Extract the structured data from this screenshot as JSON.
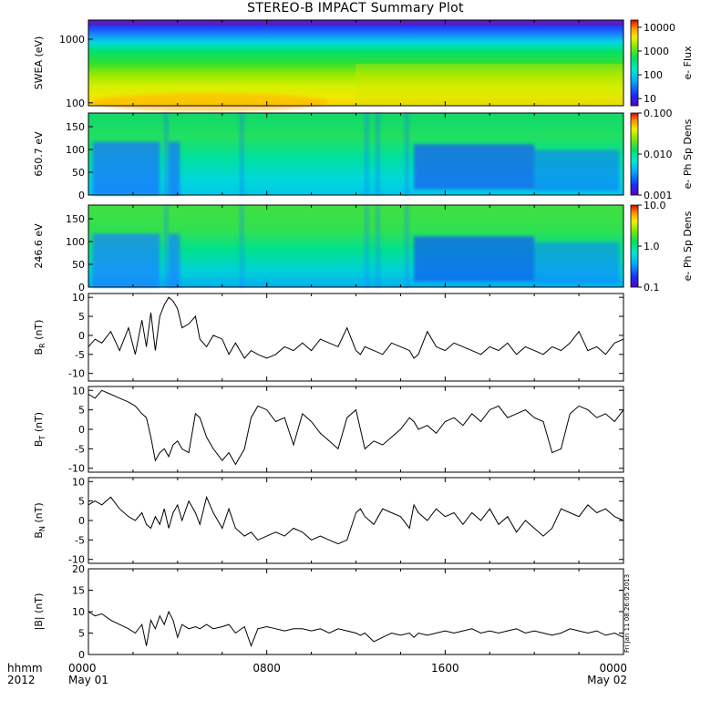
{
  "title": "STEREO-B IMPACT Summary Plot",
  "timestamp": "Fri Jan 11 08:26:05 2013",
  "x_axis": {
    "left_labels": [
      "hhmm",
      "2012"
    ],
    "ticks": [
      {
        "t": 0,
        "lines": [
          "0000",
          "May 01"
        ]
      },
      {
        "t": 8,
        "lines": [
          "0800",
          ""
        ]
      },
      {
        "t": 16,
        "lines": [
          "1600",
          ""
        ]
      },
      {
        "t": 24,
        "lines": [
          "0000",
          "May 02"
        ]
      }
    ]
  },
  "chart_data": [
    {
      "type": "heatmap",
      "panel": "swea",
      "ylabel": "SWEA (eV)",
      "y_scale": "log",
      "ylim": [
        90,
        2000
      ],
      "yticks": [
        "100",
        "1000"
      ],
      "colorbar": {
        "label": "e- Flux",
        "scale": "log",
        "range": [
          5,
          20000
        ],
        "ticks": [
          "10",
          "100",
          "1000",
          "10000"
        ]
      },
      "description_rows": [
        {
          "energy_ev": 1800,
          "value": 8
        },
        {
          "energy_ev": 1200,
          "value": 60
        },
        {
          "energy_ev": 700,
          "value": 600
        },
        {
          "energy_ev": 400,
          "value": 1500
        },
        {
          "energy_ev": 200,
          "value": 5000
        },
        {
          "energy_ev": 110,
          "value": 9000
        }
      ]
    },
    {
      "type": "heatmap",
      "panel": "pad650",
      "ylabel": "650.7 eV",
      "ylim": [
        0,
        180
      ],
      "yticks": [
        "0",
        "50",
        "100",
        "150"
      ],
      "colorbar": {
        "label": "e- Ph Sp Dens",
        "scale": "log",
        "range": [
          0.001,
          0.1
        ],
        "ticks": [
          "0.001",
          "0.010",
          "0.100"
        ]
      }
    },
    {
      "type": "heatmap",
      "panel": "pad246",
      "ylabel": "246.6 eV",
      "ylim": [
        0,
        180
      ],
      "yticks": [
        "0",
        "50",
        "100",
        "150"
      ],
      "colorbar": {
        "label": "e- Ph Sp Dens",
        "scale": "log",
        "range": [
          0.1,
          10
        ],
        "ticks": [
          "0.1",
          "1.0",
          "10.0"
        ]
      }
    },
    {
      "type": "line",
      "panel": "br",
      "ylabel": "B_R (nT)",
      "ylabel_main": "B",
      "ylabel_sub": "R",
      "ylabel_unit": "(nT)",
      "ylim": [
        -12,
        11
      ],
      "yticks": [
        -10,
        -5,
        0,
        5,
        10
      ],
      "x": [
        0,
        0.3,
        0.6,
        1.0,
        1.4,
        1.8,
        2.1,
        2.4,
        2.6,
        2.8,
        3.0,
        3.2,
        3.4,
        3.6,
        3.8,
        4.0,
        4.2,
        4.5,
        4.8,
        5.0,
        5.3,
        5.6,
        6.0,
        6.3,
        6.6,
        7.0,
        7.3,
        7.6,
        8.0,
        8.4,
        8.8,
        9.2,
        9.6,
        10.0,
        10.4,
        10.8,
        11.2,
        11.6,
        12.0,
        12.2,
        12.4,
        12.8,
        13.2,
        13.6,
        14.0,
        14.4,
        14.6,
        14.8,
        15.2,
        15.6,
        16.0,
        16.4,
        16.8,
        17.2,
        17.6,
        18.0,
        18.4,
        18.8,
        19.2,
        19.6,
        20.0,
        20.4,
        20.8,
        21.2,
        21.6,
        22.0,
        22.4,
        22.8,
        23.2,
        23.6,
        24.0
      ],
      "y": [
        -3,
        -1,
        -2,
        1,
        -4,
        2,
        -5,
        4,
        -3,
        6,
        -4,
        5,
        8,
        10,
        9,
        7,
        2,
        3,
        5,
        -1,
        -3,
        0,
        -1,
        -5,
        -2,
        -6,
        -4,
        -5,
        -6,
        -5,
        -3,
        -4,
        -2,
        -4,
        -1,
        -2,
        -3,
        2,
        -4,
        -5,
        -3,
        -4,
        -5,
        -2,
        -3,
        -4,
        -6,
        -5,
        1,
        -3,
        -4,
        -2,
        -3,
        -4,
        -5,
        -3,
        -4,
        -2,
        -5,
        -3,
        -4,
        -5,
        -3,
        -4,
        -2,
        1,
        -4,
        -3,
        -5,
        -2,
        -1
      ]
    },
    {
      "type": "line",
      "panel": "bt",
      "ylabel": "B_T (nT)",
      "ylabel_main": "B",
      "ylabel_sub": "T",
      "ylabel_unit": "(nT)",
      "ylim": [
        -11,
        11
      ],
      "yticks": [
        -10,
        -5,
        0,
        5,
        10
      ],
      "x": [
        0,
        0.3,
        0.6,
        1.0,
        1.4,
        1.8,
        2.1,
        2.4,
        2.6,
        2.8,
        3.0,
        3.2,
        3.4,
        3.6,
        3.8,
        4.0,
        4.2,
        4.5,
        4.8,
        5.0,
        5.3,
        5.6,
        6.0,
        6.3,
        6.6,
        7.0,
        7.3,
        7.6,
        8.0,
        8.4,
        8.8,
        9.2,
        9.6,
        10.0,
        10.4,
        10.8,
        11.2,
        11.6,
        12.0,
        12.2,
        12.4,
        12.8,
        13.2,
        13.6,
        14.0,
        14.4,
        14.6,
        14.8,
        15.2,
        15.6,
        16.0,
        16.4,
        16.8,
        17.2,
        17.6,
        18.0,
        18.4,
        18.8,
        19.2,
        19.6,
        20.0,
        20.4,
        20.8,
        21.2,
        21.6,
        22.0,
        22.4,
        22.8,
        23.2,
        23.6,
        24.0
      ],
      "y": [
        9,
        8,
        10,
        9,
        8,
        7,
        6,
        4,
        3,
        -2,
        -8,
        -6,
        -5,
        -7,
        -4,
        -3,
        -5,
        -6,
        4,
        3,
        -2,
        -5,
        -8,
        -6,
        -9,
        -5,
        3,
        6,
        5,
        2,
        3,
        -4,
        4,
        2,
        -1,
        -3,
        -5,
        3,
        5,
        0,
        -5,
        -3,
        -4,
        -2,
        0,
        3,
        2,
        0,
        1,
        -1,
        2,
        3,
        1,
        4,
        2,
        5,
        6,
        3,
        4,
        5,
        3,
        2,
        -6,
        -5,
        4,
        6,
        5,
        3,
        4,
        2,
        5
      ]
    },
    {
      "type": "line",
      "panel": "bn",
      "ylabel": "B_N (nT)",
      "ylabel_main": "B",
      "ylabel_sub": "N",
      "ylabel_unit": "(nT)",
      "ylim": [
        -11,
        11
      ],
      "yticks": [
        -10,
        -5,
        0,
        5,
        10
      ],
      "x": [
        0,
        0.3,
        0.6,
        1.0,
        1.4,
        1.8,
        2.1,
        2.4,
        2.6,
        2.8,
        3.0,
        3.2,
        3.4,
        3.6,
        3.8,
        4.0,
        4.2,
        4.5,
        4.8,
        5.0,
        5.3,
        5.6,
        6.0,
        6.3,
        6.6,
        7.0,
        7.3,
        7.6,
        8.0,
        8.4,
        8.8,
        9.2,
        9.6,
        10.0,
        10.4,
        10.8,
        11.2,
        11.6,
        12.0,
        12.2,
        12.4,
        12.8,
        13.2,
        13.6,
        14.0,
        14.4,
        14.6,
        14.8,
        15.2,
        15.6,
        16.0,
        16.4,
        16.8,
        17.2,
        17.6,
        18.0,
        18.4,
        18.8,
        19.2,
        19.6,
        20.0,
        20.4,
        20.8,
        21.2,
        21.6,
        22.0,
        22.4,
        22.8,
        23.2,
        23.6,
        24.0
      ],
      "y": [
        4,
        5,
        4,
        6,
        3,
        1,
        0,
        2,
        -1,
        -2,
        1,
        -1,
        3,
        -2,
        2,
        4,
        0,
        5,
        2,
        -1,
        6,
        2,
        -2,
        3,
        -2,
        -4,
        -3,
        -5,
        -4,
        -3,
        -4,
        -2,
        -3,
        -5,
        -4,
        -5,
        -6,
        -5,
        2,
        3,
        1,
        -1,
        3,
        2,
        1,
        -2,
        4,
        2,
        0,
        3,
        1,
        2,
        -1,
        2,
        0,
        3,
        -1,
        1,
        -3,
        0,
        -2,
        -4,
        -2,
        3,
        2,
        1,
        4,
        2,
        3,
        1,
        0
      ]
    },
    {
      "type": "line",
      "panel": "bmag",
      "ylabel": "|B| (nT)",
      "ylabel_main": "|B|",
      "ylabel_sub": "",
      "ylabel_unit": "(nT)",
      "ylim": [
        0,
        20
      ],
      "yticks": [
        0,
        5,
        10,
        15,
        20
      ],
      "x": [
        0,
        0.3,
        0.6,
        1.0,
        1.4,
        1.8,
        2.1,
        2.4,
        2.6,
        2.8,
        3.0,
        3.2,
        3.4,
        3.6,
        3.8,
        4.0,
        4.2,
        4.5,
        4.8,
        5.0,
        5.3,
        5.6,
        6.0,
        6.3,
        6.6,
        7.0,
        7.3,
        7.6,
        8.0,
        8.4,
        8.8,
        9.2,
        9.6,
        10.0,
        10.4,
        10.8,
        11.2,
        11.6,
        12.0,
        12.2,
        12.4,
        12.8,
        13.2,
        13.6,
        14.0,
        14.4,
        14.6,
        14.8,
        15.2,
        15.6,
        16.0,
        16.4,
        16.8,
        17.2,
        17.6,
        18.0,
        18.4,
        18.8,
        19.2,
        19.6,
        20.0,
        20.4,
        20.8,
        21.2,
        21.6,
        22.0,
        22.4,
        22.8,
        23.2,
        23.6,
        24.0
      ],
      "y": [
        10,
        9,
        9.5,
        8,
        7,
        6,
        5,
        7,
        2,
        8,
        6,
        9,
        7,
        10,
        8,
        4,
        7,
        6,
        6.5,
        6,
        7,
        6,
        6.5,
        7,
        5,
        6.5,
        2,
        6,
        6.5,
        6,
        5.5,
        6,
        6,
        5.5,
        6,
        5,
        6,
        5.5,
        5,
        4.5,
        5,
        3,
        4,
        5,
        4.5,
        5,
        4,
        5,
        4.5,
        5,
        5.5,
        5,
        5.5,
        6,
        5,
        5.5,
        5,
        5.5,
        6,
        5,
        5.5,
        5,
        4.5,
        5,
        6,
        5.5,
        5,
        5.5,
        4.5,
        5,
        4
      ]
    }
  ]
}
